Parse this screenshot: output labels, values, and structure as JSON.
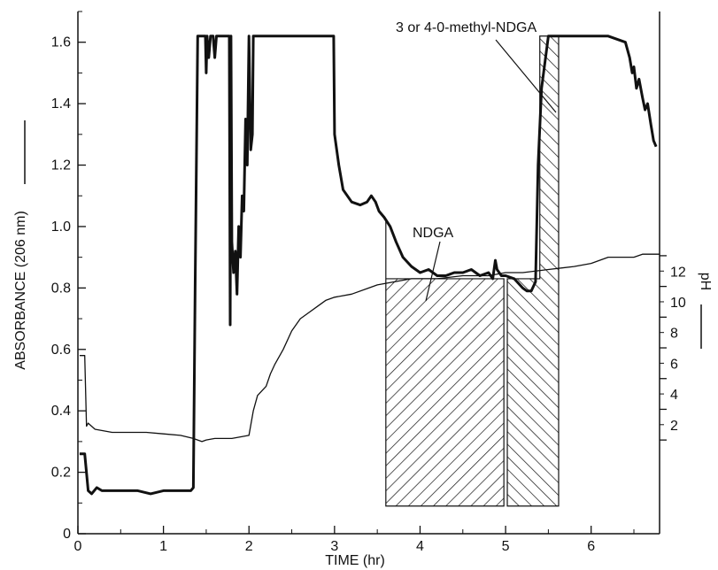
{
  "chart_data": {
    "type": "line",
    "xlabel": "TIME (hr)",
    "ylabel": "ABSORBANCE (206 nm)",
    "y2label": "pH",
    "xlim": [
      0,
      6.8
    ],
    "ylim": [
      0,
      1.7
    ],
    "y2_ticks_as_absorbance": [
      0.85,
      0.75,
      0.65,
      0.55,
      0.45,
      0.35,
      0.25
    ],
    "x_ticks": [
      0,
      1,
      2,
      3,
      4,
      5,
      6
    ],
    "x_tick_labels": [
      "0",
      "1",
      "2",
      "3",
      "4",
      "5",
      "6"
    ],
    "y_ticks": [
      0,
      0.2,
      0.4,
      0.6,
      0.8,
      1.0,
      1.2,
      1.4,
      1.6
    ],
    "y_tick_labels": [
      "0",
      "0.2",
      "0.4",
      "0.6",
      "0.8",
      "1.0",
      "1.2",
      "1.4",
      "1.6"
    ],
    "y2_ticks": [
      2,
      4,
      6,
      8,
      10,
      12
    ],
    "y2_tick_labels": [
      "2",
      "4",
      "6",
      "8",
      "10",
      "12"
    ],
    "grid": false,
    "series": [
      {
        "style": "thick",
        "x": [
          0.02,
          0.08,
          0.12,
          0.16,
          0.22,
          0.28,
          0.35,
          0.5,
          0.7,
          0.85,
          1.0,
          1.2,
          1.32,
          1.35,
          1.37,
          1.4,
          1.42,
          1.45,
          1.47,
          1.49,
          1.5,
          1.51,
          1.53,
          1.55,
          1.58,
          1.6,
          1.62,
          1.65,
          1.68,
          1.7,
          1.74,
          1.77,
          1.78,
          1.79,
          1.8,
          1.82,
          1.84,
          1.86,
          1.88,
          1.9,
          1.92,
          1.94,
          1.96,
          1.98,
          2.0,
          2.02,
          2.04,
          2.05,
          2.06,
          2.08,
          2.1,
          2.15,
          2.3,
          2.6,
          2.95,
          2.99,
          3.0,
          3.05,
          3.1,
          3.2,
          3.3,
          3.38,
          3.43,
          3.48,
          3.52,
          3.58,
          3.65,
          3.72,
          3.8,
          3.9,
          4.0,
          4.1,
          4.2,
          4.3,
          4.4,
          4.5,
          4.6,
          4.7,
          4.8,
          4.85,
          4.88,
          4.9,
          4.95,
          5.0,
          5.1,
          5.2,
          5.25,
          5.3,
          5.35,
          5.38,
          5.42,
          5.5,
          5.6,
          5.7,
          5.8,
          6.0,
          6.2,
          6.4,
          6.45,
          6.48,
          6.5,
          6.53,
          6.56,
          6.6,
          6.63,
          6.66,
          6.7,
          6.73,
          6.76
        ],
        "values": [
          0.26,
          0.26,
          0.14,
          0.13,
          0.15,
          0.14,
          0.14,
          0.14,
          0.14,
          0.13,
          0.14,
          0.14,
          0.14,
          0.15,
          0.8,
          1.62,
          1.62,
          1.62,
          1.62,
          1.62,
          1.5,
          1.62,
          1.55,
          1.62,
          1.62,
          1.55,
          1.62,
          1.62,
          1.62,
          1.62,
          1.62,
          1.62,
          0.68,
          1.62,
          0.95,
          0.85,
          0.92,
          0.78,
          1.0,
          0.9,
          1.1,
          1.05,
          1.35,
          1.2,
          1.62,
          1.25,
          1.3,
          1.62,
          1.62,
          1.62,
          1.62,
          1.62,
          1.62,
          1.62,
          1.62,
          1.62,
          1.3,
          1.2,
          1.12,
          1.08,
          1.07,
          1.08,
          1.1,
          1.08,
          1.05,
          1.03,
          1.0,
          0.95,
          0.9,
          0.87,
          0.85,
          0.86,
          0.84,
          0.84,
          0.85,
          0.85,
          0.86,
          0.84,
          0.85,
          0.83,
          0.89,
          0.86,
          0.84,
          0.84,
          0.83,
          0.8,
          0.79,
          0.79,
          0.82,
          1.2,
          1.45,
          1.62,
          1.62,
          1.62,
          1.62,
          1.62,
          1.62,
          1.6,
          1.55,
          1.5,
          1.52,
          1.45,
          1.48,
          1.42,
          1.38,
          1.4,
          1.33,
          1.28,
          1.26
        ]
      },
      {
        "style": "thin",
        "x": [
          0.02,
          0.08,
          0.1,
          0.12,
          0.2,
          0.4,
          0.6,
          0.8,
          1.0,
          1.2,
          1.35,
          1.45,
          1.5,
          1.6,
          1.8,
          2.0,
          2.05,
          2.1,
          2.2,
          2.25,
          2.3,
          2.4,
          2.5,
          2.6,
          2.7,
          2.8,
          2.9,
          3.0,
          3.2,
          3.4,
          3.5,
          3.7,
          3.9,
          4.2,
          4.5,
          4.8,
          5.0,
          5.2,
          5.5,
          5.8,
          6.0,
          6.2,
          6.3,
          6.5,
          6.6,
          6.8
        ],
        "values": [
          0.58,
          0.58,
          0.35,
          0.36,
          0.34,
          0.33,
          0.33,
          0.33,
          0.325,
          0.32,
          0.31,
          0.3,
          0.305,
          0.31,
          0.31,
          0.32,
          0.4,
          0.45,
          0.48,
          0.52,
          0.55,
          0.6,
          0.66,
          0.7,
          0.72,
          0.74,
          0.76,
          0.77,
          0.78,
          0.8,
          0.81,
          0.82,
          0.83,
          0.83,
          0.84,
          0.84,
          0.85,
          0.85,
          0.86,
          0.87,
          0.88,
          0.9,
          0.9,
          0.9,
          0.91,
          0.91
        ]
      }
    ],
    "shaded_regions": [
      {
        "label": "NDGA",
        "x": [
          3.6,
          4.98
        ],
        "y_bottom": 0.09,
        "top_x": [
          3.6,
          3.6,
          3.8,
          4.98
        ],
        "top_y": [
          1.02,
          0.83,
          0.83,
          0.83
        ]
      },
      {
        "label": "3 or 4-0-methyl-NDGA",
        "x": [
          5.02,
          5.62
        ],
        "y_bottom": 0.09,
        "top_x": [
          5.02,
          5.4,
          5.4,
          5.62
        ],
        "top_y": [
          0.83,
          0.83,
          1.62,
          1.62
        ]
      }
    ],
    "annotations": {
      "ndga": "NDGA",
      "methyl": "3 or 4-0-methyl-NDGA"
    }
  }
}
